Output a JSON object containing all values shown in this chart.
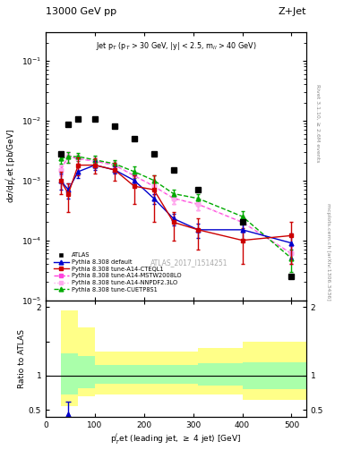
{
  "title_left": "13000 GeV pp",
  "title_right": "Z+Jet",
  "subtitle": "Jet p$_T$ (p$_T$ > 30 GeV, |y| < 2.5, m$_{ll}$ > 40 GeV)",
  "watermark": "ATLAS_2017_I1514251",
  "right_label1": "Rivet 3.1.10, ≥ 2.6M events",
  "right_label2": "mcplots.cern.ch [arXiv:1306.3436]",
  "atlas_x": [
    30,
    46,
    66,
    100,
    140,
    180,
    220,
    260,
    310,
    400,
    500
  ],
  "atlas_y": [
    0.0028,
    0.0085,
    0.0105,
    0.0105,
    0.008,
    0.005,
    0.0028,
    0.0015,
    0.0007,
    0.0002,
    2.5e-05
  ],
  "pythia_default_x": [
    30,
    46,
    66,
    100,
    140,
    180,
    220,
    260,
    310,
    400,
    500
  ],
  "pythia_default_y": [
    0.001,
    0.0007,
    0.0014,
    0.0018,
    0.0015,
    0.001,
    0.0005,
    0.00023,
    0.00015,
    0.00015,
    9e-05
  ],
  "pythia_default_yerr": [
    0.0003,
    0.0002,
    0.0003,
    0.0003,
    0.0002,
    0.0002,
    0.0001,
    5e-05,
    4e-05,
    5e-05,
    4e-05
  ],
  "cteq_x": [
    30,
    46,
    66,
    100,
    140,
    180,
    220,
    260,
    310,
    400,
    500
  ],
  "cteq_y": [
    0.001,
    0.0006,
    0.0018,
    0.0018,
    0.0015,
    0.0008,
    0.0007,
    0.0002,
    0.00015,
    0.0001,
    0.00012
  ],
  "cteq_yerr": [
    0.0004,
    0.0003,
    0.0006,
    0.0005,
    0.0005,
    0.0004,
    0.0005,
    0.0001,
    8e-05,
    6e-05,
    8e-05
  ],
  "mstw_x": [
    30,
    46,
    66,
    100,
    140,
    180,
    220,
    260,
    310,
    400,
    500
  ],
  "mstw_y": [
    0.0015,
    0.0025,
    0.0023,
    0.0021,
    0.0018,
    0.0012,
    0.0008,
    0.0005,
    0.0004,
    0.0002,
    6e-05
  ],
  "mstw_yerr": [
    0.0003,
    0.0005,
    0.0004,
    0.0004,
    0.0003,
    0.0002,
    0.0002,
    0.0001,
    8e-05,
    5e-05,
    2e-05
  ],
  "nnpdf_x": [
    30,
    46,
    66,
    100,
    140,
    180,
    220,
    260,
    310,
    400,
    500
  ],
  "nnpdf_y": [
    0.0015,
    0.0025,
    0.0023,
    0.0021,
    0.0018,
    0.0012,
    0.0008,
    0.0005,
    0.0004,
    0.0002,
    6e-05
  ],
  "nnpdf_yerr": [
    0.0003,
    0.0005,
    0.0004,
    0.0004,
    0.0003,
    0.0002,
    0.0002,
    0.0001,
    8e-05,
    5e-05,
    2e-05
  ],
  "cuetp_x": [
    30,
    46,
    66,
    100,
    140,
    180,
    220,
    260,
    310,
    400,
    500
  ],
  "cuetp_y": [
    0.0023,
    0.0025,
    0.0025,
    0.0022,
    0.0019,
    0.0014,
    0.001,
    0.0006,
    0.0005,
    0.00025,
    5e-05
  ],
  "cuetp_yerr": [
    0.0004,
    0.0005,
    0.0004,
    0.0004,
    0.0003,
    0.0003,
    0.0002,
    0.0001,
    0.0001,
    6e-05,
    2e-05
  ],
  "ylim": [
    1e-05,
    0.3
  ],
  "xlim_main": [
    0,
    530
  ],
  "xlim_ratio": [
    0,
    530
  ],
  "ratio_blue_x": [
    46
  ],
  "ratio_blue_y": [
    0.44
  ],
  "ratio_blue_yerr_lo": [
    0.12
  ],
  "ratio_blue_yerr_hi": [
    0.18
  ],
  "yellow_x_edges": [
    30,
    66,
    100,
    140,
    180,
    220,
    260,
    310,
    400,
    460,
    530
  ],
  "yellow_lo": [
    0.55,
    0.7,
    0.72,
    0.72,
    0.72,
    0.72,
    0.72,
    0.72,
    0.65,
    0.65,
    0.65
  ],
  "yellow_hi": [
    1.95,
    1.7,
    1.35,
    1.35,
    1.35,
    1.35,
    1.35,
    1.4,
    1.5,
    1.5,
    1.5
  ],
  "green_x_edges": [
    30,
    66,
    100,
    140,
    180,
    220,
    260,
    310,
    400,
    460,
    530
  ],
  "green_lo": [
    0.72,
    0.82,
    0.88,
    0.88,
    0.88,
    0.88,
    0.88,
    0.85,
    0.8,
    0.8,
    0.8
  ],
  "green_hi": [
    1.32,
    1.28,
    1.15,
    1.15,
    1.15,
    1.15,
    1.15,
    1.18,
    1.2,
    1.2,
    1.2
  ],
  "color_atlas": "#000000",
  "color_default": "#0000cc",
  "color_cteq": "#cc0000",
  "color_mstw": "#ff44dd",
  "color_nnpdf": "#ffaaee",
  "color_cuetp": "#00aa00",
  "color_band_yellow": "#ffff88",
  "color_band_green": "#aaffaa"
}
